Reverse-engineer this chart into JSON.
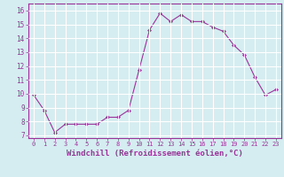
{
  "x": [
    0,
    1,
    2,
    3,
    4,
    5,
    6,
    7,
    8,
    9,
    10,
    11,
    12,
    13,
    14,
    15,
    16,
    17,
    18,
    19,
    20,
    21,
    22,
    23
  ],
  "y": [
    9.9,
    8.8,
    7.2,
    7.8,
    7.8,
    7.8,
    7.8,
    8.3,
    8.3,
    8.8,
    11.7,
    14.6,
    15.8,
    15.2,
    15.7,
    15.2,
    15.2,
    14.8,
    14.5,
    13.5,
    12.8,
    11.2,
    9.9,
    10.3
  ],
  "line_color": "#993399",
  "marker": "D",
  "markersize": 2.0,
  "linewidth": 0.8,
  "xlabel": "Windchill (Refroidissement éolien,°C)",
  "xlabel_fontsize": 6.5,
  "ylabel_fontsize": 6.5,
  "yticks": [
    7,
    8,
    9,
    10,
    11,
    12,
    13,
    14,
    15,
    16
  ],
  "xticks": [
    0,
    1,
    2,
    3,
    4,
    5,
    6,
    7,
    8,
    9,
    10,
    11,
    12,
    13,
    14,
    15,
    16,
    17,
    18,
    19,
    20,
    21,
    22,
    23
  ],
  "xlim": [
    -0.5,
    23.5
  ],
  "ylim": [
    6.8,
    16.5
  ],
  "bg_color": "#d5edf0",
  "grid_color": "#ffffff",
  "tick_color": "#993399",
  "label_color": "#993399",
  "spine_color": "#993399"
}
